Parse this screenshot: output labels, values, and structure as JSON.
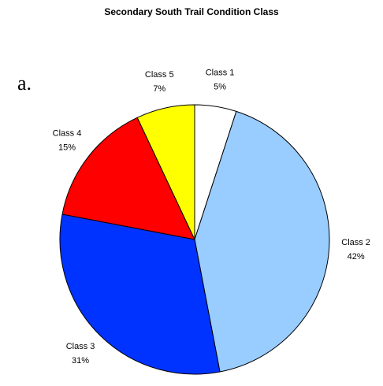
{
  "chart_data": {
    "type": "pie",
    "title": "Secondary South Trail Condition Class",
    "annotation": "a.",
    "categories": [
      "Class 1",
      "Class 2",
      "Class 3",
      "Class 4",
      "Class 5"
    ],
    "values": [
      5,
      42,
      31,
      15,
      7
    ],
    "value_labels": [
      "5%",
      "42%",
      "31%",
      "15%",
      "7%"
    ],
    "colors": [
      "#ffffff",
      "#99ccff",
      "#0033ff",
      "#ff0000",
      "#ffff00"
    ]
  }
}
